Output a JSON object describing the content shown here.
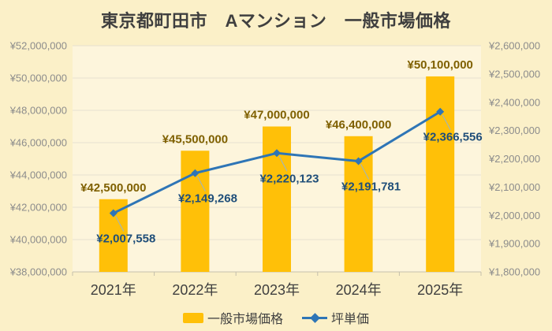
{
  "title": "東京都町田市　Aマンション　一般市場価格",
  "chart_data": {
    "type": "combo-bar-line",
    "categories": [
      "2021年",
      "2022年",
      "2023年",
      "2024年",
      "2025年"
    ],
    "series": [
      {
        "name": "一般市場価格",
        "type": "bar",
        "axis": "left",
        "values": [
          42500000,
          45500000,
          47000000,
          46400000,
          50100000
        ],
        "data_labels": [
          "¥42,500,000",
          "¥45,500,000",
          "¥47,000,000",
          "¥46,400,000",
          "¥50,100,000"
        ],
        "color": "#FFC008",
        "label_color": "#7F6000"
      },
      {
        "name": "坪単価",
        "type": "line",
        "axis": "right",
        "values": [
          2007558,
          2149268,
          2220123,
          2191781,
          2366556
        ],
        "data_labels": [
          "¥2,007,558",
          "¥2,149,268",
          "¥2,220,123",
          "¥2,191,781",
          "¥2,366,556"
        ],
        "color": "#2E75B6",
        "label_color": "#1F4E79"
      }
    ],
    "left_axis": {
      "min": 38000000,
      "max": 52000000,
      "step": 2000000,
      "tick_labels": [
        "¥38,000,000",
        "¥40,000,000",
        "¥42,000,000",
        "¥44,000,000",
        "¥46,000,000",
        "¥48,000,000",
        "¥50,000,000",
        "¥52,000,000"
      ]
    },
    "right_axis": {
      "min": 1800000,
      "max": 2600000,
      "step": 100000,
      "tick_labels": [
        "¥1,800,000",
        "¥1,900,000",
        "¥2,000,000",
        "¥2,100,000",
        "¥2,200,000",
        "¥2,300,000",
        "¥2,400,000",
        "¥2,500,000",
        "¥2,600,000"
      ]
    },
    "grid": "horizontal",
    "legend_position": "bottom",
    "colors": {
      "background": "#FBF0C8",
      "plot_background": "#FDF5DC",
      "gridline": "#E6E1D0",
      "axis_line": "#C5BFAB",
      "tick_label": "#8C8C8C",
      "category_label": "#3F3F3F",
      "title": "#3F3F3F",
      "leader_line": "#97B3CC"
    }
  }
}
